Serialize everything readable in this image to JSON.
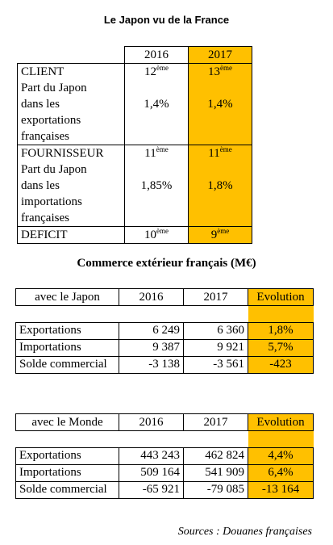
{
  "titles": {
    "japon_france": "Le Japon vu de la France",
    "commerce": "Commerce extérieur français (M€)"
  },
  "ranking": {
    "headers": [
      "2016",
      "2017"
    ],
    "client": {
      "label": "CLIENT",
      "desc": [
        "Part du Japon",
        "dans les",
        "exportations",
        "françaises"
      ],
      "rank_2016": "12",
      "rank_2017": "13",
      "suffix": "ème",
      "share_2016": "1,4%",
      "share_2017": "1,4%"
    },
    "fournisseur": {
      "label": "FOURNISSEUR",
      "desc": [
        "Part du Japon",
        "dans les",
        "importations",
        "françaises"
      ],
      "rank_2016": "11",
      "rank_2017": "11",
      "suffix": "ème",
      "share_2016": "1,85%",
      "share_2017": "1,8%"
    },
    "deficit": {
      "label": "DEFICIT",
      "rank_2016": "10",
      "rank_2017": "9",
      "suffix": "ème"
    }
  },
  "japon": {
    "header": "avec le Japon",
    "cols": [
      "2016",
      "2017",
      "Evolution"
    ],
    "rows": [
      {
        "label": "Exportations",
        "v2016": "6 249",
        "v2017": "6 360",
        "evo": "1,8%"
      },
      {
        "label": "Importations",
        "v2016": "9 387",
        "v2017": "9 921",
        "evo": "5,7%"
      },
      {
        "label": "Solde commercial",
        "v2016": "-3 138",
        "v2017": "-3 561",
        "evo": "-423"
      }
    ]
  },
  "monde": {
    "header": "avec le Monde",
    "cols": [
      "2016",
      "2017",
      "Evolution"
    ],
    "rows": [
      {
        "label": "Exportations",
        "v2016": "443 243",
        "v2017": "462 824",
        "evo": "4,4%"
      },
      {
        "label": "Importations",
        "v2016": "509 164",
        "v2017": "541 909",
        "evo": "6,4%"
      },
      {
        "label": "Solde commercial",
        "v2016": "-65 921",
        "v2017": "-79 085",
        "evo": "-13 164"
      }
    ]
  },
  "sources": "Sources : Douanes françaises",
  "colors": {
    "highlight": "#ffc000"
  }
}
